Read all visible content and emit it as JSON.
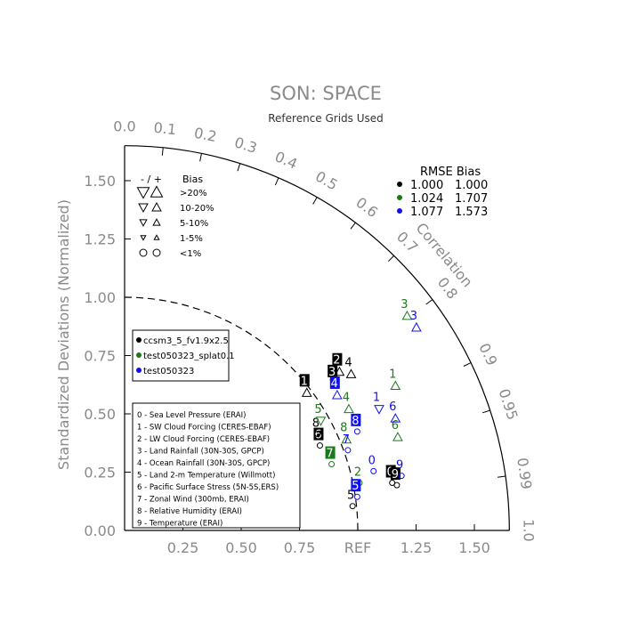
{
  "chart_data": {
    "type": "scatter",
    "subtype": "taylor-diagram",
    "title": "SON: SPACE",
    "subtitle": "Reference Grids Used",
    "ylabel": "Standardized Deviations (Normalized)",
    "correlation_label": "Correlation",
    "ref_label": "REF",
    "ylim": [
      0,
      1.65
    ],
    "xlim": [
      0,
      1.65
    ],
    "x_ticks": [
      "0.25",
      "0.50",
      "0.75",
      "1.25",
      "1.50"
    ],
    "y_ticks": [
      "0.00",
      "0.25",
      "0.50",
      "0.75",
      "1.00",
      "1.25",
      "1.50"
    ],
    "correlation_ticks": [
      "0.0",
      "0.1",
      "0.2",
      "0.3",
      "0.4",
      "0.5",
      "0.6",
      "0.7",
      "0.8",
      "0.9",
      "0.95",
      "0.99",
      "1.0"
    ],
    "bias_legend": {
      "header_left": "-  /  +",
      "header_right": "Bias",
      "rows": [
        {
          "label": ">20%",
          "marker": "triangle",
          "size": 12
        },
        {
          "label": "10-20%",
          "marker": "triangle",
          "size": 9
        },
        {
          "label": "5-10%",
          "marker": "triangle",
          "size": 7
        },
        {
          "label": "1-5%",
          "marker": "triangle",
          "size": 5
        },
        {
          "label": "<1%",
          "marker": "circle",
          "size": 4
        }
      ]
    },
    "rmse_legend": {
      "header": "RMSE  Bias",
      "rows": [
        {
          "color": "#000000",
          "rmse": "1.000",
          "bias": "1.000"
        },
        {
          "color": "#1a7a1a",
          "rmse": "1.024",
          "bias": "1.707"
        },
        {
          "color": "#1010ee",
          "rmse": "1.077",
          "bias": "1.573"
        }
      ]
    },
    "series": [
      {
        "name": "ccsm3_5_fv1.9x2.5",
        "color": "#000000",
        "points": [
          {
            "id": "0",
            "x": 1.14,
            "y": 0.25,
            "box": true,
            "bias": "circle"
          },
          {
            "id": "1",
            "x": 0.77,
            "y": 0.64,
            "box": true,
            "bias": "up"
          },
          {
            "id": "2",
            "x": 0.91,
            "y": 0.73,
            "box": true,
            "bias": "up"
          },
          {
            "id": "3",
            "x": 0.89,
            "y": 0.68,
            "box": true,
            "bias": "down"
          },
          {
            "id": "4",
            "x": 0.96,
            "y": 0.72,
            "box": false,
            "bias": "up"
          },
          {
            "id": "5",
            "x": 0.97,
            "y": 0.15,
            "box": false,
            "bias": "circle"
          },
          {
            "id": "6",
            "x": 0.83,
            "y": 0.41,
            "box": true,
            "bias": "circle"
          },
          {
            "id": "8",
            "x": 0.82,
            "y": 0.46,
            "box": false,
            "bias": "circle"
          },
          {
            "id": "9",
            "x": 1.16,
            "y": 0.24,
            "box": true,
            "bias": "circle"
          }
        ]
      },
      {
        "name": "test050323_splat0.1",
        "color": "#1a7a1a",
        "points": [
          {
            "id": "1",
            "x": 1.15,
            "y": 0.67,
            "box": false,
            "bias": "up"
          },
          {
            "id": "2",
            "x": 1.0,
            "y": 0.25,
            "box": false,
            "bias": "circle"
          },
          {
            "id": "3",
            "x": 1.2,
            "y": 0.97,
            "box": false,
            "bias": "up"
          },
          {
            "id": "4",
            "x": 0.95,
            "y": 0.57,
            "box": false,
            "bias": "up"
          },
          {
            "id": "5",
            "x": 0.83,
            "y": 0.52,
            "box": false,
            "bias": "down"
          },
          {
            "id": "6",
            "x": 1.16,
            "y": 0.45,
            "box": false,
            "bias": "up"
          },
          {
            "id": "7",
            "x": 0.88,
            "y": 0.33,
            "box": true,
            "bias": "circle"
          },
          {
            "id": "8",
            "x": 0.94,
            "y": 0.44,
            "box": false,
            "bias": "up"
          }
        ]
      },
      {
        "name": "test050323",
        "color": "#1010ee",
        "points": [
          {
            "id": "0",
            "x": 1.06,
            "y": 0.3,
            "box": false,
            "bias": "circle"
          },
          {
            "id": "1",
            "x": 1.08,
            "y": 0.57,
            "box": false,
            "bias": "down"
          },
          {
            "id": "3",
            "x": 1.24,
            "y": 0.92,
            "box": false,
            "bias": "up"
          },
          {
            "id": "4",
            "x": 0.9,
            "y": 0.63,
            "box": true,
            "bias": "up"
          },
          {
            "id": "5",
            "x": 0.99,
            "y": 0.19,
            "box": true,
            "bias": "circle"
          },
          {
            "id": "6",
            "x": 1.15,
            "y": 0.53,
            "box": false,
            "bias": "up"
          },
          {
            "id": "7",
            "x": 0.95,
            "y": 0.39,
            "box": false,
            "bias": "circle"
          },
          {
            "id": "8",
            "x": 0.99,
            "y": 0.47,
            "box": true,
            "bias": "circle"
          },
          {
            "id": "9",
            "x": 1.18,
            "y": 0.28,
            "box": false,
            "bias": "circle"
          }
        ]
      }
    ],
    "case_legend": [
      {
        "label": "ccsm3_5_fv1.9x2.5",
        "color": "#000000"
      },
      {
        "label": "test050323_splat0.1",
        "color": "#1a7a1a"
      },
      {
        "label": "test050323",
        "color": "#1010ee"
      }
    ],
    "variable_legend": [
      "0 - Sea Level Pressure (ERAI)",
      "1 - SW Cloud Forcing (CERES-EBAF)",
      "2 - LW Cloud Forcing (CERES-EBAF)",
      "3 - Land Rainfall (30N-30S, GPCP)",
      "4 - Ocean Rainfall (30N-30S, GPCP)",
      "5 - Land 2-m Temperature (Willmott)",
      "6 - Pacific Surface Stress (5N-5S,ERS)",
      "7 - Zonal Wind (300mb, ERAI)",
      "8 - Relative Humidity (ERAI)",
      "9 - Temperature (ERAI)"
    ]
  }
}
